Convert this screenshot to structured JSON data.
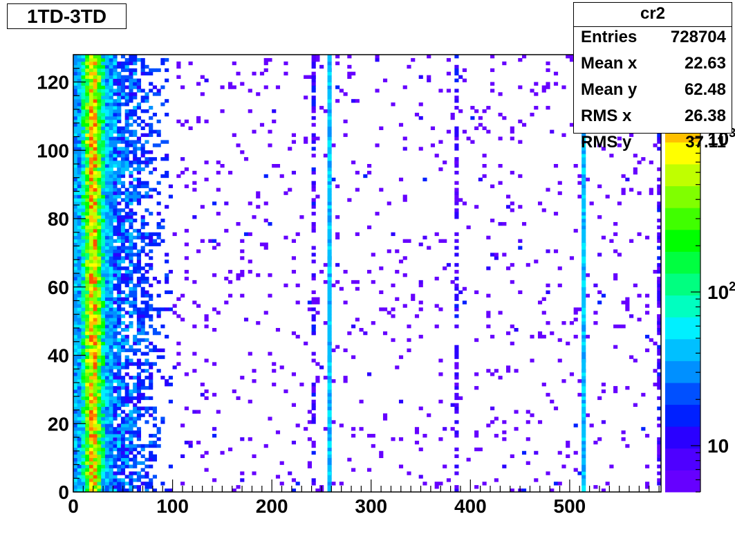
{
  "title": "1TD-3TD",
  "stats": {
    "name": "cr2",
    "rows": [
      {
        "label": "Entries",
        "value": "728704"
      },
      {
        "label": "Mean x",
        "value": "22.63"
      },
      {
        "label": "Mean y",
        "value": "62.48"
      },
      {
        "label": "RMS x",
        "value": "26.38"
      },
      {
        "label": "RMS y",
        "value": "37.11"
      }
    ]
  },
  "chart_data": {
    "type": "heatmap",
    "title": "1TD-3TD",
    "xlabel": "",
    "ylabel": "",
    "xlim": [
      0,
      592
    ],
    "ylim": [
      0,
      128
    ],
    "x_ticks": [
      0,
      100,
      200,
      300,
      400,
      500
    ],
    "y_ticks": [
      0,
      20,
      40,
      60,
      80,
      100,
      120
    ],
    "z_scale": "log",
    "z_range": [
      5,
      3500
    ],
    "z_tick_labels": [
      {
        "text": "10",
        "exp": ""
      },
      {
        "text": "10",
        "exp": "2"
      },
      {
        "text": "10",
        "exp": "3"
      }
    ],
    "z_tick_values": [
      10,
      100,
      1000
    ],
    "palette": [
      "#6600ff",
      "#4e00ff",
      "#2a00ff",
      "#0020ff",
      "#0050ff",
      "#0090ff",
      "#00c0ff",
      "#00f0ff",
      "#00ffc0",
      "#00ff80",
      "#00ff40",
      "#00ff00",
      "#40ff00",
      "#80ff00",
      "#c0ff00",
      "#ffff00",
      "#ffc000",
      "#ff8000",
      "#ff5000",
      "#ff2000"
    ],
    "bin_width_x": 4,
    "bin_width_y": 1,
    "features": {
      "core_band_x": [
        0,
        40
      ],
      "peak_x": 20,
      "diffuse_region_x": [
        40,
        100
      ],
      "vertical_lines_x": [
        240,
        256,
        384,
        512,
        588
      ],
      "legend_position": "top-right"
    }
  }
}
